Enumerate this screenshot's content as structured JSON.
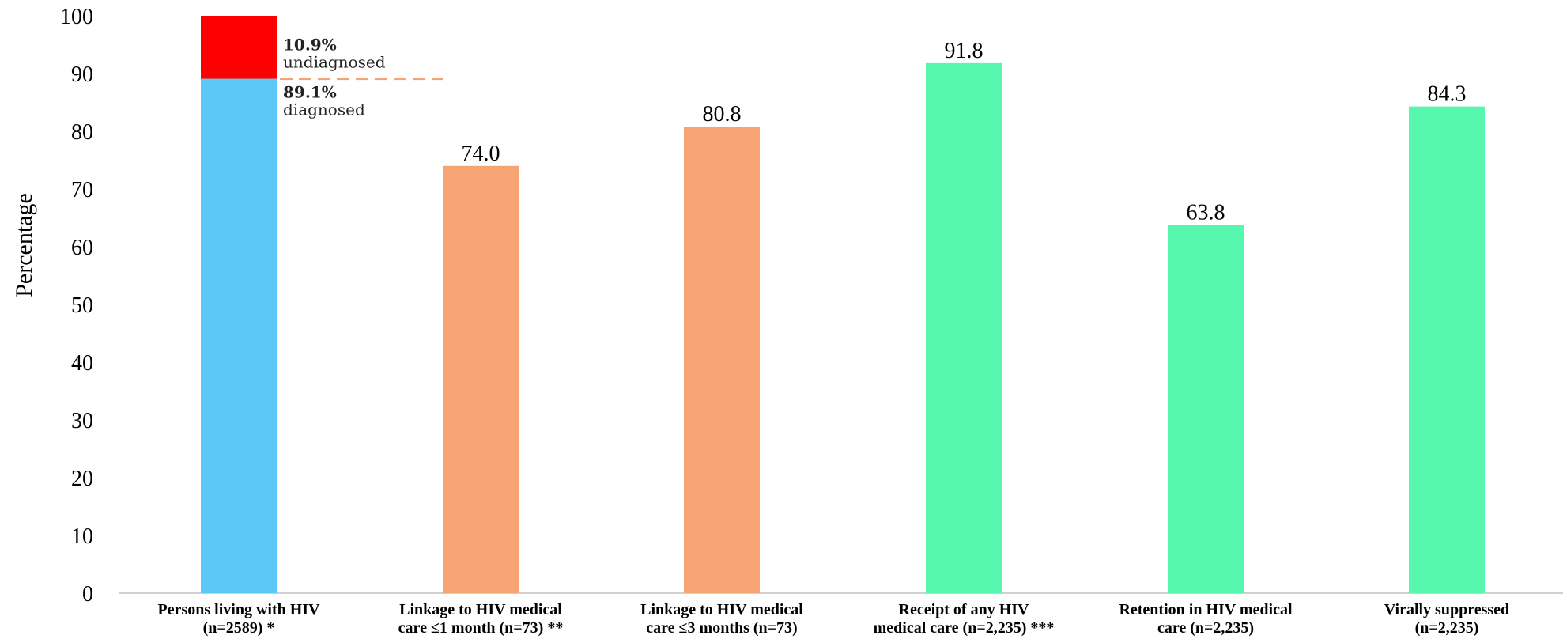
{
  "chart_data": {
    "type": "bar",
    "ylabel": "Percentage",
    "ylim": [
      0,
      100
    ],
    "yticks": [
      0,
      10,
      20,
      30,
      40,
      50,
      60,
      70,
      80,
      90,
      100
    ],
    "grid": false,
    "categories": [
      [
        "Persons living with HIV",
        "(n=2589) *"
      ],
      [
        "Linkage to HIV medical",
        "care ≤1 month (n=73) **"
      ],
      [
        "Linkage to HIV medical",
        "care ≤3 months (n=73)"
      ],
      [
        "Receipt of any HIV",
        "medical care (n=2,235) ***"
      ],
      [
        "Retention in HIV medical",
        "care (n=2,235)"
      ],
      [
        "Virally suppressed",
        "(n=2,235)"
      ]
    ],
    "bars": [
      {
        "stacked": true,
        "segments": [
          {
            "value": 89.1,
            "color": "#5BC8F7",
            "label_pct": "89.1%",
            "label_text": "diagnosed"
          },
          {
            "value": 10.9,
            "color": "#FF0000",
            "label_pct": "10.9%",
            "label_text": "undiagnosed"
          }
        ]
      },
      {
        "value": 74.0,
        "label": "74.0",
        "color": "#F7A475"
      },
      {
        "value": 80.8,
        "label": "80.8",
        "color": "#F7A475"
      },
      {
        "value": 91.8,
        "label": "91.8",
        "color": "#57F7B0"
      },
      {
        "value": 63.8,
        "label": "63.8",
        "color": "#57F7B0"
      },
      {
        "value": 84.3,
        "label": "84.3",
        "color": "#57F7B0"
      }
    ],
    "reference_line": {
      "value": 89.1,
      "color": "#F7A475",
      "style": "dashed"
    }
  }
}
